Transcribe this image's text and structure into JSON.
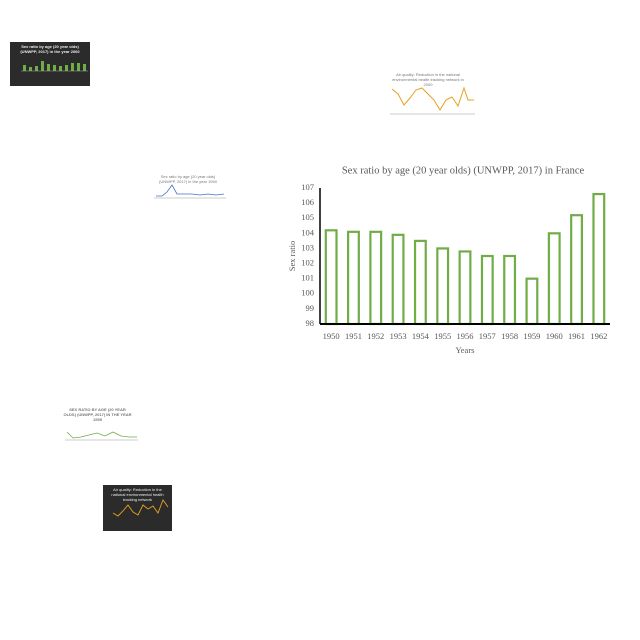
{
  "chart_data": {
    "type": "bar",
    "title": "Sex ratio by age (20 year olds) (UNWPP, 2017) in France",
    "x_label": "Years",
    "y_label": "Sex ratio",
    "categories": [
      "1950",
      "1951",
      "1952",
      "1953",
      "1954",
      "1955",
      "1956",
      "1957",
      "1958",
      "1959",
      "1960",
      "1961",
      "1962"
    ],
    "values": [
      104.2,
      104.1,
      104.1,
      103.9,
      103.5,
      103.0,
      102.8,
      102.5,
      102.5,
      101.0,
      104.0,
      105.2,
      106.6
    ],
    "color": "#70ad47",
    "ylim": [
      98,
      107
    ],
    "yticks": [
      98,
      99,
      100,
      101,
      102,
      103,
      104,
      105,
      106,
      107
    ],
    "grid": false
  },
  "thumbnails": [
    {
      "title": "Sex ratio by age (20 year olds) (UNWPP, 2017) in the year 2060"
    },
    {
      "title": "Air quality: Reduction in the national environmental health tracking network in 2000"
    },
    {
      "title": "Sex ratio by age (20 year olds) (UNWPP, 2017) in the year 1950"
    },
    {
      "title": "SEX RATIO BY AGE (20 YEAR OLDS) (UNWPP, 2017) IN THE YEAR 1955"
    },
    {
      "title": "Air quality: Reduction in the national environmental health tracking network"
    }
  ]
}
